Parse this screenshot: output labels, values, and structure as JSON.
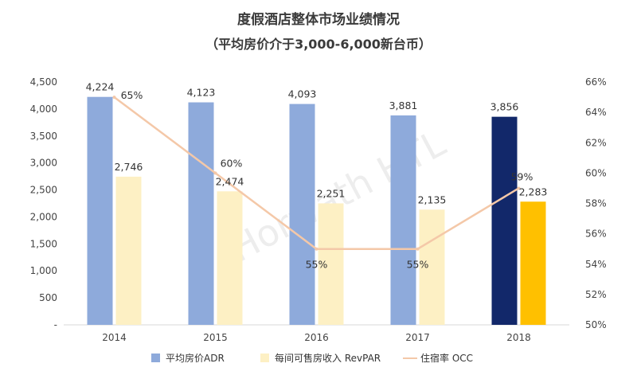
{
  "chart_data": {
    "type": "bar",
    "title": "度假酒店整体市场业绩情况",
    "subtitle": "（平均房价介于3,000-6,000新台币）",
    "categories": [
      "2014",
      "2015",
      "2016",
      "2017",
      "2018"
    ],
    "series": [
      {
        "name": "平均房价ADR",
        "type": "bar",
        "axis": "left",
        "values": [
          4224,
          4123,
          4093,
          3881,
          3856
        ],
        "labels": [
          "4,224",
          "4,123",
          "4,093",
          "3,881",
          "3,856"
        ],
        "color": "#8eaadb",
        "highlight_color": "#12286a"
      },
      {
        "name": "每间可售房收入 RevPAR",
        "type": "bar",
        "axis": "left",
        "values": [
          2746,
          2474,
          2251,
          2135,
          2283
        ],
        "labels": [
          "2,746",
          "2,474",
          "2,251",
          "2,135",
          "2,283"
        ],
        "color": "#fdf0c4",
        "highlight_color": "#ffc000"
      },
      {
        "name": "住宿率 OCC",
        "type": "line",
        "axis": "right",
        "values": [
          65,
          60,
          55,
          55,
          59
        ],
        "labels": [
          "65%",
          "60%",
          "55%",
          "55%",
          "59%"
        ],
        "color": "#f4c8a8"
      }
    ],
    "y_left": {
      "min": 0,
      "max": 4500,
      "step": 500,
      "ticks": [
        "-",
        "500",
        "1,000",
        "1,500",
        "2,000",
        "2,500",
        "3,000",
        "3,500",
        "4,000",
        "4,500"
      ]
    },
    "y_right": {
      "min": 50,
      "max": 66,
      "step": 2,
      "ticks": [
        "50%",
        "52%",
        "54%",
        "56%",
        "58%",
        "60%",
        "62%",
        "64%",
        "66%"
      ]
    },
    "highlight_category": "2018",
    "legend_position": "bottom",
    "grid": false
  },
  "watermark": "Horwath HTL"
}
